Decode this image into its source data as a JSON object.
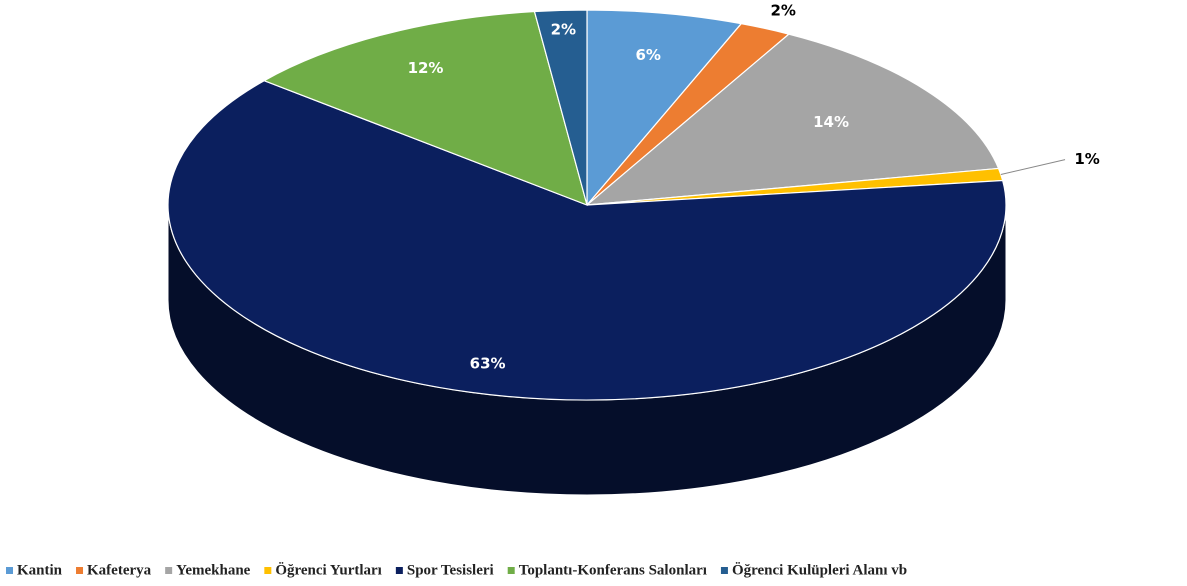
{
  "chart_data": {
    "type": "pie",
    "categories": [
      "Kantin",
      "Kafeterya",
      "Yemekhane",
      "Öğrenci Yurtları",
      "Spor Tesisleri",
      "Toplantı-Konferans Salonları",
      "Öğrenci Kulüpleri Alanı vb"
    ],
    "values": [
      6,
      2,
      14,
      1,
      63,
      12,
      2
    ],
    "value_labels": [
      "6%",
      "2%",
      "14%",
      "1%",
      "63%",
      "12%",
      "2%"
    ],
    "colors": [
      "#5b9bd5",
      "#ed7d31",
      "#a5a5a5",
      "#ffc000",
      "#0b1f5e",
      "#70ad47",
      "#255e91"
    ],
    "legend": "bottom"
  }
}
